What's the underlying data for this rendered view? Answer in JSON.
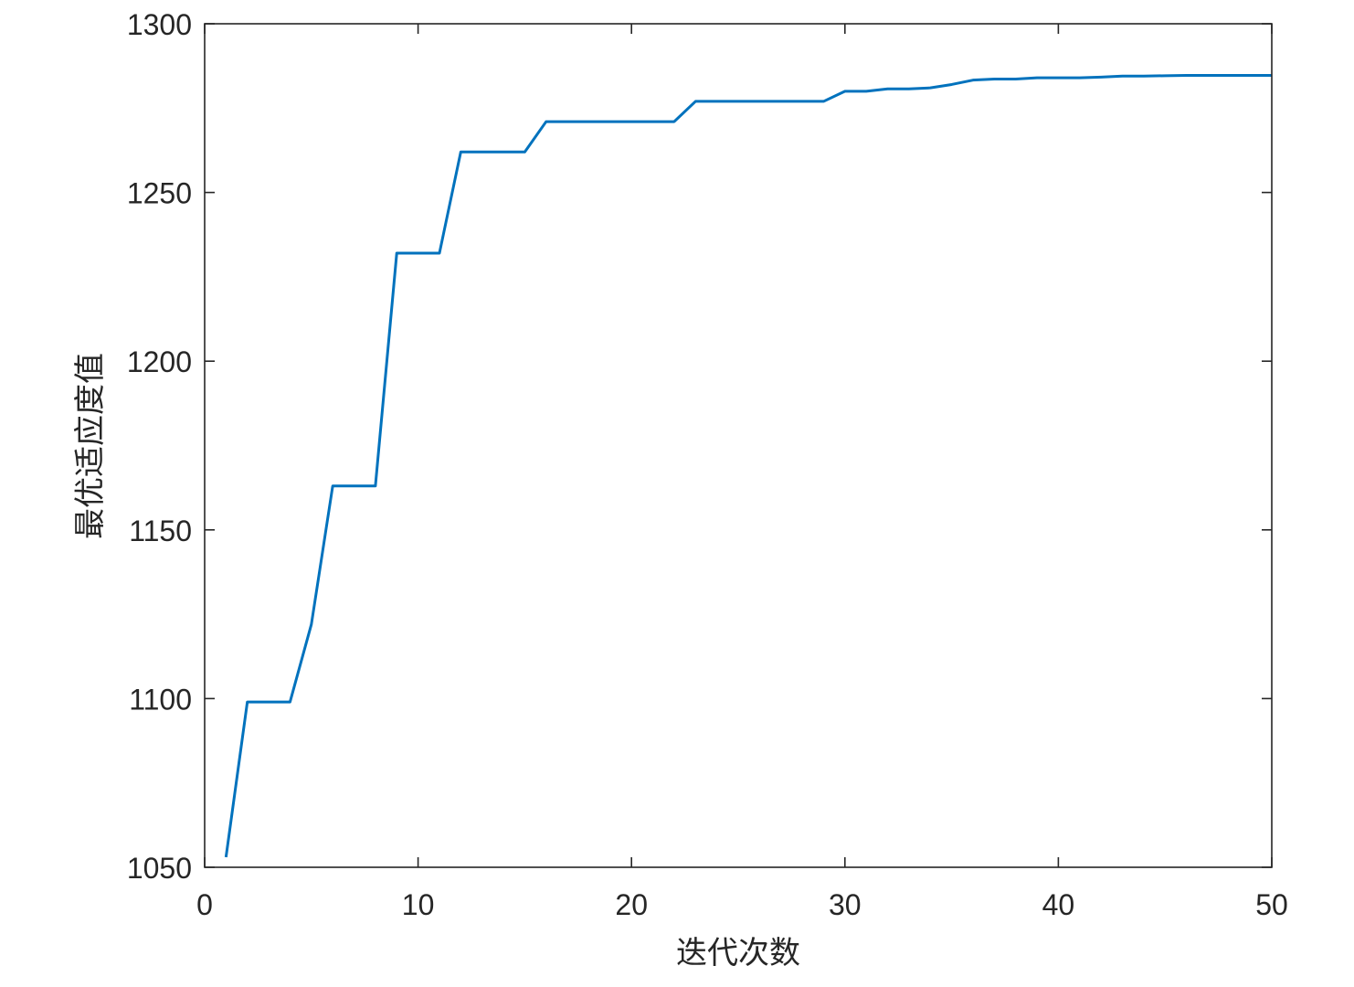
{
  "chart_data": {
    "type": "line",
    "title": "",
    "xlabel": "迭代次数",
    "ylabel": "最优适应度值",
    "xlim": [
      0,
      50
    ],
    "ylim": [
      1050,
      1300
    ],
    "xticks": [
      0,
      10,
      20,
      30,
      40,
      50
    ],
    "yticks": [
      1050,
      1100,
      1150,
      1200,
      1250,
      1300
    ],
    "grid": false,
    "line_color": "#0072BD",
    "series": [
      {
        "x": [
          1,
          2,
          3,
          4,
          5,
          6,
          7,
          8,
          9,
          10,
          11,
          12,
          13,
          14,
          15,
          16,
          17,
          18,
          19,
          20,
          21,
          22,
          23,
          24,
          25,
          26,
          27,
          28,
          29,
          30,
          31,
          32,
          33,
          34,
          35,
          36,
          37,
          38,
          39,
          40,
          41,
          42,
          43,
          44,
          45,
          46,
          47,
          48,
          49,
          50
        ],
        "values": [
          1053,
          1099,
          1099,
          1099,
          1122,
          1163,
          1163,
          1163,
          1232,
          1232,
          1232,
          1262,
          1262,
          1262,
          1262,
          1271,
          1271,
          1271,
          1271,
          1271,
          1271,
          1271,
          1277,
          1277,
          1277,
          1277,
          1277,
          1277,
          1277,
          1280,
          1280,
          1280.7,
          1280.7,
          1281,
          1282,
          1283.3,
          1283.6,
          1283.6,
          1284,
          1284,
          1284,
          1284.2,
          1284.5,
          1284.5,
          1284.6,
          1284.7,
          1284.7,
          1284.7,
          1284.7,
          1284.7
        ]
      }
    ]
  }
}
